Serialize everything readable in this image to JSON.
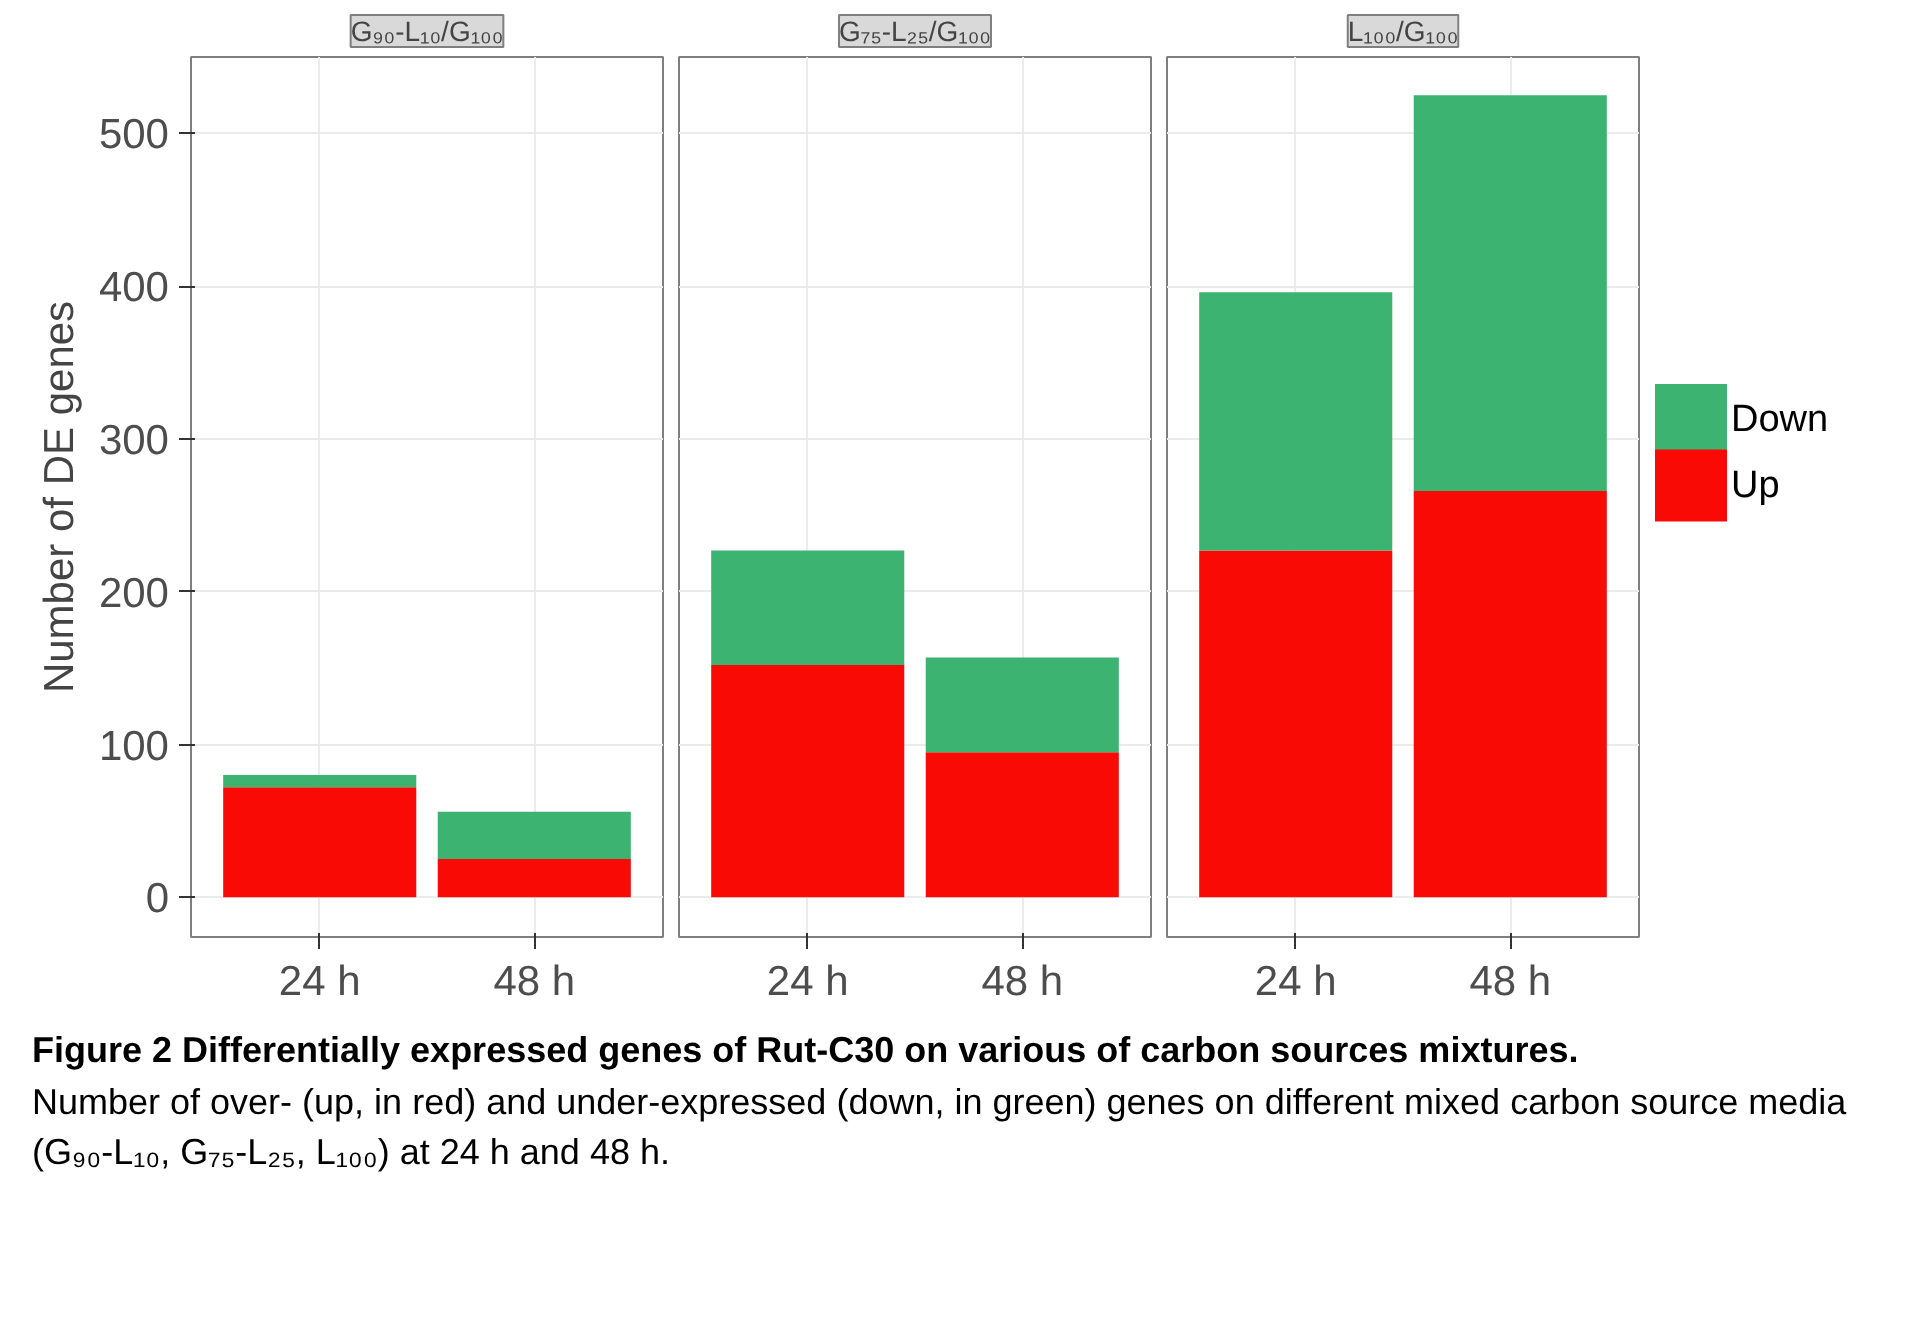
{
  "chart_data": [
    {
      "type": "bar",
      "title": "G₉₀-L₁₀/G₁₀₀",
      "ylabel": "Number of DE genes",
      "categories": [
        "24 h",
        "48 h"
      ],
      "stacked": true,
      "ylim": [
        -26,
        550
      ],
      "yticks": [
        0,
        100,
        200,
        300,
        400,
        500
      ],
      "grid": true,
      "legend": "right",
      "series": [
        {
          "name": "Up",
          "color": "#fa0a05",
          "values": [
            72,
            25
          ]
        },
        {
          "name": "Down",
          "color": "#3cb371",
          "values": [
            8,
            31
          ]
        }
      ],
      "annotations": [
        "Figure 2  Differentially expressed genes of Rut-C30 on various of carbon sources mixtures.",
        "Number of over- (up, in red) and under-expressed (down, in green) genes on different mixed carbon source media (G₉₀-L₁₀, G₇₅-L₂₅, L₁₀₀) at 24 h and 48 h."
      ]
    },
    {
      "type": "bar",
      "title": "G₇₅-L₂₅/G₁₀₀",
      "categories": [
        "24 h",
        "48 h"
      ],
      "stacked": true,
      "ylim": [
        -26,
        550
      ],
      "yticks": [
        0,
        100,
        200,
        300,
        400,
        500
      ],
      "grid": true,
      "tick_labels": "x",
      "series": [
        {
          "color": "#fa0a05",
          "values": [
            152,
            95
          ]
        },
        {
          "color": "#3cb371",
          "values": [
            75,
            62
          ]
        }
      ]
    },
    {
      "type": "bar",
      "title": "L₁₀₀/G₁₀₀",
      "categories": [
        "24 h",
        "48 h"
      ],
      "stacked": true,
      "ylim": [
        -26,
        550
      ],
      "yticks": [
        0,
        100,
        200,
        300,
        400,
        500
      ],
      "grid": true,
      "tick_labels": "x",
      "series": [
        {
          "color": "#fa0a05",
          "values": [
            227,
            266
          ]
        },
        {
          "color": "#3cb371",
          "values": [
            169,
            259
          ]
        }
      ]
    }
  ]
}
